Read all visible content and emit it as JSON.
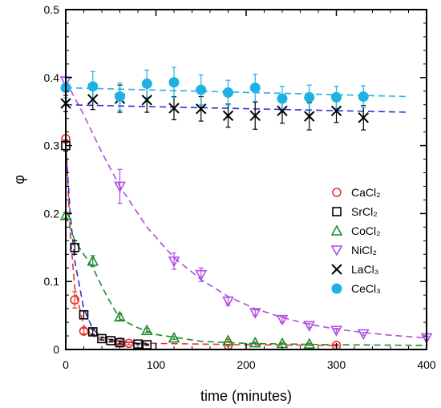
{
  "chart_data": {
    "type": "scatter",
    "xlabel": "time (minutes)",
    "ylabel": "φ",
    "xlim": [
      0,
      400
    ],
    "ylim": [
      0,
      0.5
    ],
    "x_ticks": [
      "0",
      "100",
      "200",
      "300",
      "400"
    ],
    "y_ticks": [
      "0",
      "0.1",
      "0.2",
      "0.3",
      "0.4",
      "0.5"
    ],
    "grid": false,
    "legend_position": "right-middle",
    "series": [
      {
        "name": "CaCl₂",
        "marker": "circle-open",
        "color": "#e8312a",
        "points": [
          [
            0,
            0.31
          ],
          [
            10,
            0.073
          ],
          [
            20,
            0.027
          ],
          [
            60,
            0.011
          ],
          [
            70,
            0.009
          ],
          [
            180,
            0.006
          ],
          [
            300,
            0.006
          ]
        ],
        "errors": [
          0.006,
          0.012,
          0.004,
          0.002,
          0.002,
          0.001,
          0.001
        ],
        "fit": [
          [
            0,
            0.31
          ],
          [
            5,
            0.17
          ],
          [
            10,
            0.09
          ],
          [
            20,
            0.035
          ],
          [
            30,
            0.02
          ],
          [
            40,
            0.014
          ],
          [
            60,
            0.011
          ],
          [
            100,
            0.009
          ],
          [
            200,
            0.007
          ],
          [
            300,
            0.006
          ]
        ]
      },
      {
        "name": "SrCl₂",
        "marker": "square-open",
        "color": "#000000",
        "fit_color": "#2f2fd8",
        "points": [
          [
            0,
            0.3
          ],
          [
            10,
            0.15
          ],
          [
            20,
            0.051
          ],
          [
            30,
            0.026
          ],
          [
            40,
            0.016
          ],
          [
            50,
            0.013
          ],
          [
            60,
            0.01
          ],
          [
            80,
            0.008
          ],
          [
            90,
            0.007
          ]
        ],
        "errors": [
          0.008,
          0.01,
          0.006,
          0.004,
          0.002,
          0.002,
          0.002,
          0.001,
          0.001
        ],
        "fit": [
          [
            0,
            0.3
          ],
          [
            5,
            0.2
          ],
          [
            10,
            0.13
          ],
          [
            20,
            0.06
          ],
          [
            30,
            0.03
          ],
          [
            40,
            0.018
          ],
          [
            60,
            0.011
          ],
          [
            90,
            0.008
          ]
        ]
      },
      {
        "name": "CoCl₂",
        "marker": "triangle-up-open",
        "color": "#1e8a2c",
        "points": [
          [
            0,
            0.197
          ],
          [
            30,
            0.13
          ],
          [
            60,
            0.048
          ],
          [
            90,
            0.028
          ],
          [
            120,
            0.017
          ],
          [
            180,
            0.013
          ],
          [
            210,
            0.01
          ],
          [
            240,
            0.009
          ],
          [
            270,
            0.008
          ]
        ],
        "errors": [
          0.004,
          0.008,
          0.005,
          0.003,
          0.002,
          0.002,
          0.001,
          0.001,
          0.001
        ],
        "fit": [
          [
            0,
            0.197
          ],
          [
            10,
            0.16
          ],
          [
            20,
            0.14
          ],
          [
            30,
            0.12
          ],
          [
            45,
            0.08
          ],
          [
            60,
            0.045
          ],
          [
            80,
            0.032
          ],
          [
            100,
            0.022
          ],
          [
            150,
            0.012
          ],
          [
            200,
            0.009
          ],
          [
            300,
            0.007
          ],
          [
            400,
            0.006
          ]
        ]
      },
      {
        "name": "NiCl₂",
        "marker": "triangle-down-open",
        "color": "#b04de0",
        "points": [
          [
            0,
            0.395
          ],
          [
            60,
            0.24
          ],
          [
            120,
            0.13
          ],
          [
            150,
            0.11
          ],
          [
            180,
            0.071
          ],
          [
            210,
            0.054
          ],
          [
            240,
            0.044
          ],
          [
            270,
            0.035
          ],
          [
            300,
            0.028
          ],
          [
            330,
            0.023
          ],
          [
            400,
            0.017
          ]
        ],
        "errors": [
          0.006,
          0.025,
          0.012,
          0.01,
          0.006,
          0.004,
          0.004,
          0.003,
          0.003,
          0.002,
          0.002
        ],
        "fit": [
          [
            0,
            0.395
          ],
          [
            20,
            0.345
          ],
          [
            40,
            0.29
          ],
          [
            60,
            0.24
          ],
          [
            90,
            0.18
          ],
          [
            120,
            0.135
          ],
          [
            150,
            0.103
          ],
          [
            180,
            0.078
          ],
          [
            210,
            0.06
          ],
          [
            240,
            0.047
          ],
          [
            270,
            0.037
          ],
          [
            300,
            0.03
          ],
          [
            330,
            0.025
          ],
          [
            360,
            0.021
          ],
          [
            400,
            0.017
          ]
        ]
      },
      {
        "name": "LaCl₃",
        "marker": "x",
        "color": "#000000",
        "fit_color": "#2f2fd8",
        "points": [
          [
            0,
            0.362
          ],
          [
            30,
            0.368
          ],
          [
            60,
            0.369
          ],
          [
            90,
            0.367
          ],
          [
            120,
            0.355
          ],
          [
            150,
            0.354
          ],
          [
            180,
            0.344
          ],
          [
            210,
            0.344
          ],
          [
            240,
            0.351
          ],
          [
            270,
            0.343
          ],
          [
            300,
            0.351
          ],
          [
            330,
            0.341
          ]
        ],
        "errors": [
          0.012,
          0.015,
          0.02,
          0.018,
          0.017,
          0.018,
          0.017,
          0.02,
          0.018,
          0.02,
          0.017,
          0.018
        ],
        "fit": [
          [
            0,
            0.36
          ],
          [
            380,
            0.349
          ]
        ]
      },
      {
        "name": "CeCl₃",
        "marker": "circle-filled",
        "color": "#1fb0e6",
        "points": [
          [
            0,
            0.385
          ],
          [
            30,
            0.387
          ],
          [
            60,
            0.372
          ],
          [
            90,
            0.391
          ],
          [
            120,
            0.393
          ],
          [
            150,
            0.382
          ],
          [
            180,
            0.378
          ],
          [
            210,
            0.385
          ],
          [
            240,
            0.369
          ],
          [
            270,
            0.371
          ],
          [
            300,
            0.371
          ],
          [
            330,
            0.372
          ]
        ],
        "errors": [
          0.015,
          0.022,
          0.02,
          0.02,
          0.022,
          0.022,
          0.018,
          0.02,
          0.018,
          0.018,
          0.016,
          0.016
        ],
        "fit": [
          [
            0,
            0.385
          ],
          [
            380,
            0.372
          ]
        ]
      }
    ]
  }
}
